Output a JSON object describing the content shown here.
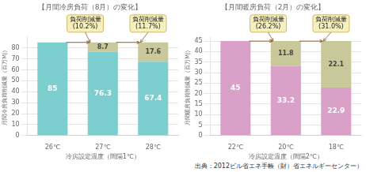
{
  "chart_data": [
    {
      "type": "bar",
      "title": "【月間冷房負荷（8月）の変化】",
      "xlabel": "冷房設定温度（間隔1℃）",
      "ylabel": "月間冷房負荷削減量（百万MJ）",
      "categories": [
        "26℃",
        "27℃",
        "28℃"
      ],
      "series": [
        {
          "color": "#7DCECE",
          "values": [
            85,
            76.3,
            67.4
          ]
        },
        {
          "color": "#C8C89A",
          "values": [
            0,
            8.7,
            17.6
          ]
        }
      ],
      "stacked": true,
      "data_labels": true,
      "grid": true,
      "ylim": [
        0,
        90
      ],
      "yticks": [
        0,
        10,
        20,
        30,
        40,
        50,
        60,
        70,
        80
      ],
      "annotations": [
        {
          "text": "負荷削減量\n(10.2%)",
          "category": "27℃"
        },
        {
          "text": "負荷削減量\n(11.7%)",
          "category": "28℃"
        }
      ]
    },
    {
      "type": "bar",
      "title": "【月間暖房負荷（2月）の変化】",
      "xlabel": "冷房設定温度（間隔2℃）",
      "ylabel": "月間暖房負荷削減量（百万MJ）",
      "categories": [
        "22℃",
        "20℃",
        "18℃"
      ],
      "series": [
        {
          "color": "#D9A0C8",
          "values": [
            45,
            33.2,
            22.9
          ]
        },
        {
          "color": "#C8C89A",
          "values": [
            0,
            11.8,
            22.1
          ]
        }
      ],
      "stacked": true,
      "data_labels": true,
      "grid": true,
      "ylim": [
        0,
        47
      ],
      "yticks": [
        0,
        5,
        10,
        15,
        20,
        25,
        30,
        35,
        40,
        45
      ],
      "annotations": [
        {
          "text": "負荷削減量\n(26.2%)",
          "category": "20℃"
        },
        {
          "text": "負荷削減量\n(31.0%)",
          "category": "18℃"
        }
      ]
    }
  ],
  "source_text": "出典：2012ビル省エネ手帳（財）省エネルギーセンター）"
}
